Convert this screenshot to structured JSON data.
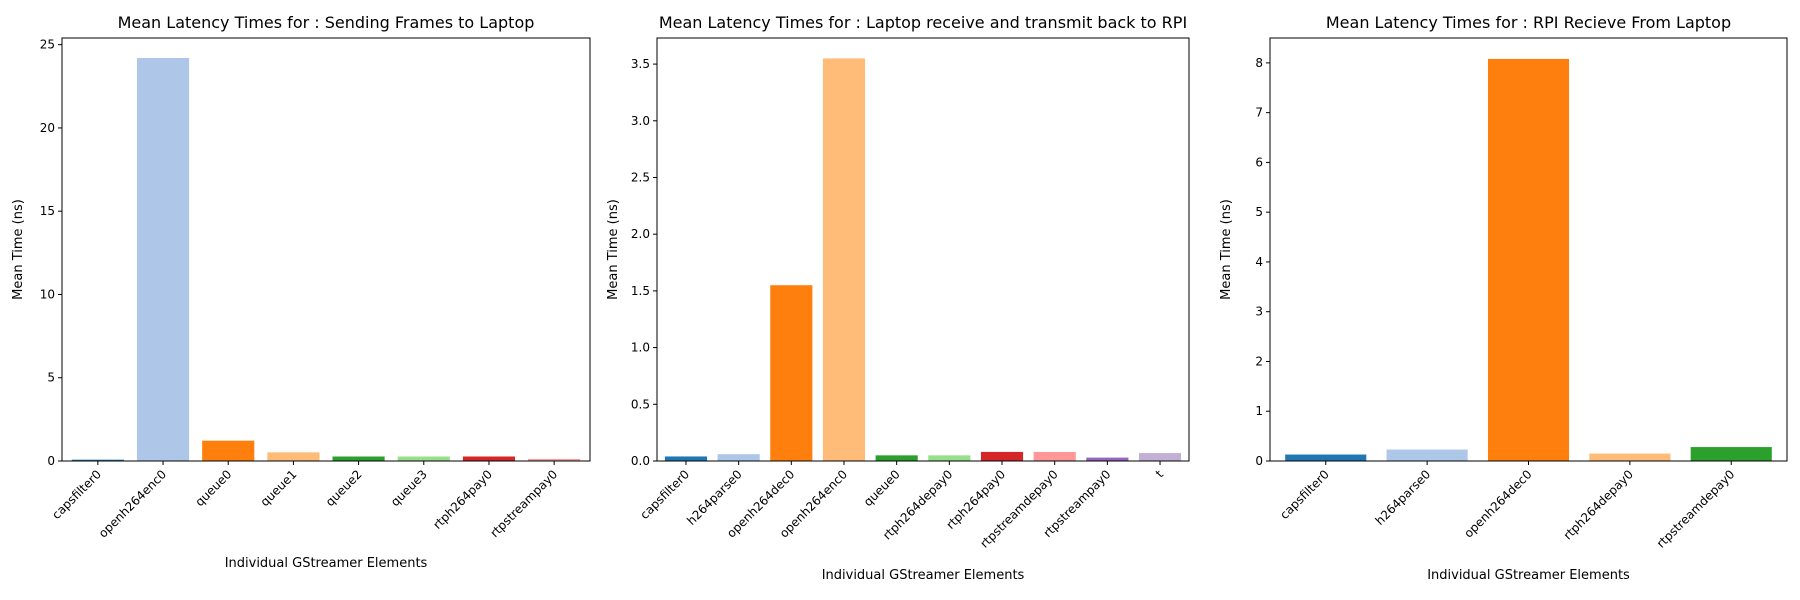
{
  "chart_data": [
    {
      "type": "bar",
      "title": "Mean Latency Times for : Sending Frames to Laptop",
      "xlabel": "Individual GStreamer Elements",
      "ylabel": "Mean Time (ns)",
      "ylim": [
        0,
        25.4
      ],
      "yticks": [
        0,
        5,
        10,
        15,
        20,
        25
      ],
      "ytick_labels": [
        "0",
        "5",
        "10",
        "15",
        "20",
        "25"
      ],
      "grid": false,
      "categories": [
        "capsfilter0",
        "openh264enc0",
        "queue0",
        "queue1",
        "queue2",
        "queue3",
        "rtph264pay0",
        "rtpstreampay0"
      ],
      "values": [
        0.08,
        24.2,
        1.22,
        0.52,
        0.27,
        0.27,
        0.27,
        0.12
      ],
      "colors": [
        "#1f77b4",
        "#aec7e8",
        "#ff7f0e",
        "#ffbb78",
        "#2ca02c",
        "#98df8a",
        "#d62728",
        "#ff9896"
      ]
    },
    {
      "type": "bar",
      "title": "Mean Latency Times for : Laptop receive and transmit back to RPI",
      "xlabel": "Individual GStreamer Elements",
      "ylabel": "Mean Time (ns)",
      "ylim": [
        0,
        3.73
      ],
      "yticks": [
        0,
        0.5,
        1,
        1.5,
        2,
        2.5,
        3,
        3.5
      ],
      "ytick_labels": [
        "0.0",
        "0.5",
        "1.0",
        "1.5",
        "2.0",
        "2.5",
        "3.0",
        "3.5"
      ],
      "grid": false,
      "categories": [
        "capsfilter0",
        "h264parse0",
        "openh264dec0",
        "openh264enc0",
        "queue0",
        "rtph264depay0",
        "rtph264pay0",
        "rtpstreamdepay0",
        "rtpstreampay0",
        "t"
      ],
      "values": [
        0.04,
        0.06,
        1.55,
        3.55,
        0.05,
        0.05,
        0.08,
        0.08,
        0.03,
        0.07
      ],
      "colors": [
        "#1f77b4",
        "#aec7e8",
        "#ff7f0e",
        "#ffbb78",
        "#2ca02c",
        "#98df8a",
        "#d62728",
        "#ff9896",
        "#9467bd",
        "#c5b0d5"
      ]
    },
    {
      "type": "bar",
      "title": "Mean Latency Times for : RPI Recieve From Laptop",
      "xlabel": "Individual GStreamer Elements",
      "ylabel": "Mean Time (ns)",
      "ylim": [
        0,
        8.5
      ],
      "yticks": [
        0,
        1,
        2,
        3,
        4,
        5,
        6,
        7,
        8
      ],
      "ytick_labels": [
        "0",
        "1",
        "2",
        "3",
        "4",
        "5",
        "6",
        "7",
        "8"
      ],
      "grid": false,
      "categories": [
        "capsfilter0",
        "h264parse0",
        "openh264dec0",
        "rtph264depay0",
        "rtpstreamdepay0"
      ],
      "values": [
        0.13,
        0.23,
        8.08,
        0.15,
        0.28
      ],
      "colors": [
        "#1f77b4",
        "#aec7e8",
        "#ff7f0e",
        "#ffbb78",
        "#2ca02c"
      ]
    }
  ]
}
